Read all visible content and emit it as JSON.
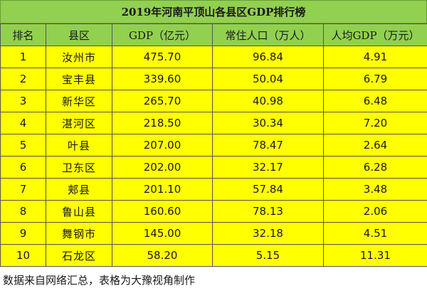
{
  "title": "2019年河南平顶山各县区GDP排行榜",
  "headers": [
    "排名",
    "县区",
    "GDP（亿元）",
    "常住人口（万人）",
    "人均GDP（万元）"
  ],
  "rows": [
    {
      "rank": "1",
      "county": "汝州市",
      "gdp": "475.70",
      "population": "96.84",
      "per_capita": "4.91"
    },
    {
      "rank": "2",
      "county": "宝丰县",
      "gdp": "339.60",
      "population": "50.04",
      "per_capita": "6.79"
    },
    {
      "rank": "3",
      "county": "新华区",
      "gdp": "265.70",
      "population": "40.98",
      "per_capita": "6.48"
    },
    {
      "rank": "4",
      "county": "湛河区",
      "gdp": "218.50",
      "population": "30.34",
      "per_capita": "7.20"
    },
    {
      "rank": "5",
      "county": "叶县",
      "gdp": "207.00",
      "population": "78.47",
      "per_capita": "2.64"
    },
    {
      "rank": "6",
      "county": "卫东区",
      "gdp": "202.00",
      "population": "32.17",
      "per_capita": "6.28"
    },
    {
      "rank": "7",
      "county": "郏县",
      "gdp": "201.10",
      "population": "57.84",
      "per_capita": "3.48"
    },
    {
      "rank": "8",
      "county": "鲁山县",
      "gdp": "160.60",
      "population": "78.13",
      "per_capita": "2.06"
    },
    {
      "rank": "9",
      "county": "舞钢市",
      "gdp": "145.00",
      "population": "32.18",
      "per_capita": "4.51"
    },
    {
      "rank": "10",
      "county": "石龙区",
      "gdp": "58.20",
      "population": "5.15",
      "per_capita": "11.31"
    }
  ],
  "footer": "数据来自网络汇总，表格为大豫视角制作",
  "colors": {
    "header_bg": "#92d050",
    "row_bg": "#ffff00"
  }
}
